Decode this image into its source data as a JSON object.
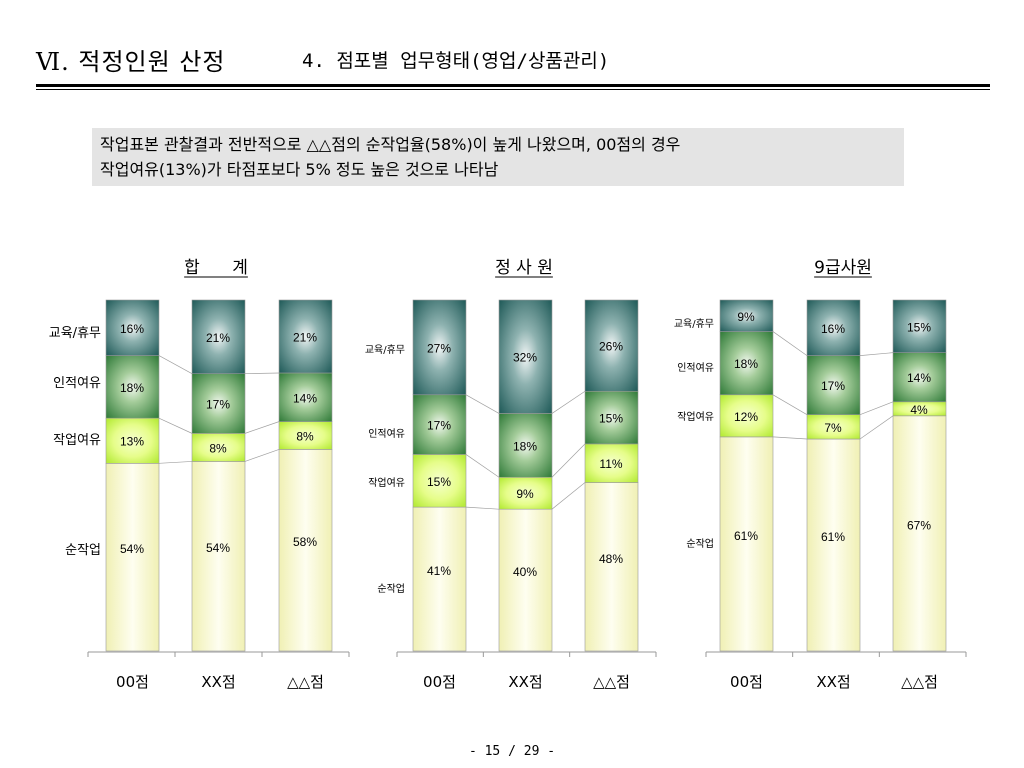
{
  "header": {
    "title": "Ⅵ. 적정인원 산정",
    "subtitle": "4. 점포별 업무형태(영업/상품관리)"
  },
  "summary": {
    "line1": "작업표본 관찰결과 전반적으로 △△점의 순작업율(58%)이 높게 나왔으며, 00점의 경우",
    "line2": "작업여유(13%)가 타점포보다 5% 정도 높은 것으로 나타남"
  },
  "footer": {
    "page": "- 15 / 29 -"
  },
  "colors": {
    "순작업": "#fdfdd8",
    "작업여유": "#e8fd90",
    "인적여유": "#5a9e52",
    "교육/휴무": "#2f6f6c"
  },
  "chart_data": [
    {
      "type": "bar",
      "stacked": true,
      "normalized_percent": true,
      "title": "합      계",
      "categories": [
        "00점",
        "XX점",
        "△△점"
      ],
      "series": [
        {
          "name": "순작업",
          "values": [
            54,
            54,
            58
          ]
        },
        {
          "name": "작업여유",
          "values": [
            13,
            8,
            8
          ]
        },
        {
          "name": "인적여유",
          "values": [
            18,
            17,
            14
          ]
        },
        {
          "name": "교육/휴무",
          "values": [
            16,
            21,
            21
          ]
        }
      ]
    },
    {
      "type": "bar",
      "stacked": true,
      "normalized_percent": true,
      "title": "정 사 원",
      "categories": [
        "00점",
        "XX점",
        "△△점"
      ],
      "series": [
        {
          "name": "순작업",
          "values": [
            41,
            40,
            48
          ]
        },
        {
          "name": "작업여유",
          "values": [
            15,
            9,
            11
          ]
        },
        {
          "name": "인적여유",
          "values": [
            17,
            18,
            15
          ]
        },
        {
          "name": "교육/휴무",
          "values": [
            27,
            32,
            26
          ]
        }
      ]
    },
    {
      "type": "bar",
      "stacked": true,
      "normalized_percent": true,
      "title": "9급사원",
      "categories": [
        "00점",
        "XX점",
        "△△점"
      ],
      "series": [
        {
          "name": "순작업",
          "values": [
            61,
            61,
            67
          ]
        },
        {
          "name": "작업여유",
          "values": [
            12,
            7,
            4
          ]
        },
        {
          "name": "인적여유",
          "values": [
            18,
            17,
            14
          ]
        },
        {
          "name": "교육/휴무",
          "values": [
            9,
            16,
            15
          ]
        }
      ]
    }
  ]
}
